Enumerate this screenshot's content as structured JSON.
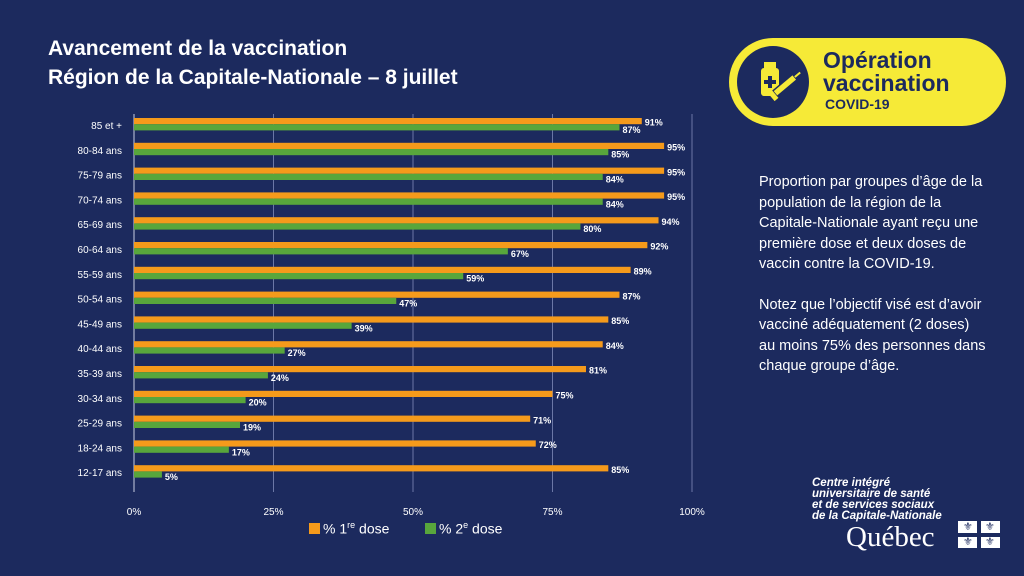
{
  "title": {
    "line1": "Avancement de la vaccination",
    "line2": "Région de la Capitale-Nationale – 8 juillet"
  },
  "badge": {
    "line1": "Opération",
    "line2": "vaccination",
    "line3": "COVID-19",
    "icon": "syringe-vial-icon"
  },
  "description": {
    "p1": "Proportion par groupes d’âge de la population de la région de la Capitale-Nationale ayant reçu une première dose et deux doses de vaccin contre la COVID-19.",
    "p2": "Notez que l’objectif visé est d’avoir vacciné adéquatement (2 doses) au moins 75% des personnes dans chaque groupe d’âge."
  },
  "legend": {
    "dose1_prefix": "% 1",
    "dose1_sup": "re",
    "dose1_suffix": " dose",
    "dose2_prefix": "% 2",
    "dose2_sup": "e",
    "dose2_suffix": " dose"
  },
  "org": {
    "line1": "Centre intégré",
    "line2": "universitaire de santé",
    "line3": "et de services sociaux",
    "line4": "de la Capitale-Nationale",
    "quebec": "Québec",
    "flag_icon": "quebec-flag-icon"
  },
  "colors": {
    "background": "#1c2a5e",
    "dose1": "#f59a1b",
    "dose2": "#58a63c",
    "badge": "#f6ea37"
  },
  "chart_data": {
    "type": "bar",
    "orientation": "horizontal",
    "categories": [
      "85 et +",
      "80-84 ans",
      "75-79 ans",
      "70-74 ans",
      "65-69 ans",
      "60-64 ans",
      "55-59 ans",
      "50-54 ans",
      "45-49 ans",
      "40-44 ans",
      "35-39 ans",
      "30-34 ans",
      "25-29 ans",
      "18-24 ans",
      "12-17 ans"
    ],
    "series": [
      {
        "name": "% 1re dose",
        "values": [
          91,
          95,
          95,
          95,
          94,
          92,
          89,
          87,
          85,
          84,
          81,
          75,
          71,
          72,
          85
        ]
      },
      {
        "name": "% 2e dose",
        "values": [
          87,
          85,
          84,
          84,
          80,
          67,
          59,
          47,
          39,
          27,
          24,
          20,
          19,
          17,
          5
        ]
      }
    ],
    "value_labels": {
      "dose1": [
        "91%",
        "95%",
        "95%",
        "95%",
        "94%",
        "92%",
        "89%",
        "87%",
        "85%",
        "84%",
        "81%",
        "75%",
        "71%",
        "72%",
        "85%"
      ],
      "dose2": [
        "87%",
        "85%",
        "84%",
        "84%",
        "80%",
        "67%",
        "59%",
        "47%",
        "39%",
        "27%",
        "24%",
        "20%",
        "19%",
        "17%",
        "5%"
      ]
    },
    "xticks": [
      "0%",
      "25%",
      "50%",
      "75%",
      "100%"
    ],
    "xlim": [
      0,
      100
    ],
    "grid": "vertical",
    "legend_position": "bottom"
  }
}
